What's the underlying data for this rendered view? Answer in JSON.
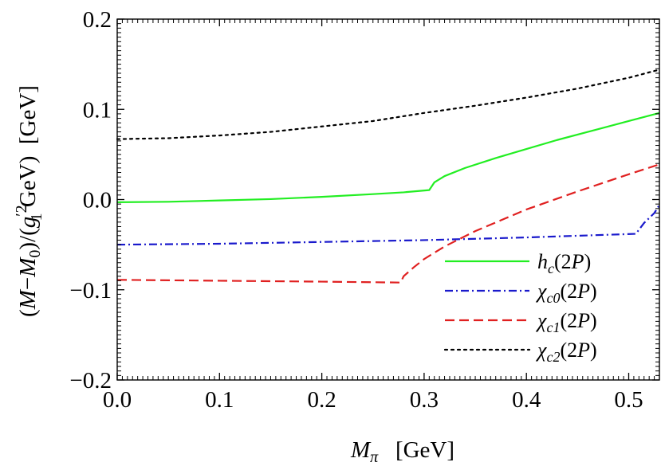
{
  "chart_data": {
    "type": "line",
    "title": "",
    "xlabel_main": "M",
    "xlabel_sub": "π",
    "xlabel_unit": "[GeV]",
    "ylabel_parts": {
      "lead": "(",
      "m": "M",
      "minus": "−",
      "m0": "M",
      "sub0": "0",
      "mid": ")/(",
      "g": "g",
      "gsup": "′2",
      "gsub": "1",
      "unitgev": " GeV)",
      "unit": "[GeV]"
    },
    "xlim": [
      0.0,
      0.53
    ],
    "ylim": [
      -0.2,
      0.2
    ],
    "x_ticks": [
      0.0,
      0.1,
      0.2,
      0.3,
      0.4,
      0.5
    ],
    "x_tick_labels": [
      "0.0",
      "0.1",
      "0.2",
      "0.3",
      "0.4",
      "0.5"
    ],
    "y_ticks": [
      -0.2,
      -0.1,
      0.0,
      0.1,
      0.2
    ],
    "y_tick_labels": [
      "−0.2",
      "−0.1",
      "0.0",
      "0.1",
      "0.2"
    ],
    "grid": false,
    "legend_position": "bottom-right",
    "series": [
      {
        "name": "h_c(2P)",
        "label_main": "h",
        "label_sub": "c",
        "label_tail": "(2P)",
        "color": "#22ee22",
        "dash": "solid",
        "x": [
          0.0,
          0.05,
          0.1,
          0.15,
          0.2,
          0.25,
          0.28,
          0.305,
          0.31,
          0.32,
          0.34,
          0.37,
          0.4,
          0.43,
          0.46,
          0.5,
          0.53
        ],
        "y": [
          -0.003,
          -0.0025,
          -0.001,
          0.0005,
          0.003,
          0.006,
          0.008,
          0.0105,
          0.019,
          0.026,
          0.035,
          0.046,
          0.056,
          0.066,
          0.075,
          0.087,
          0.096
        ]
      },
      {
        "name": "χ_c0(2P)",
        "label_main": "χ",
        "label_sub": "c0",
        "label_tail": "(2P)",
        "color": "#1a1acc",
        "dash": "dashdot",
        "x": [
          0.0,
          0.1,
          0.2,
          0.3,
          0.4,
          0.507,
          0.515,
          0.525,
          0.53
        ],
        "y": [
          -0.05,
          -0.049,
          -0.047,
          -0.045,
          -0.042,
          -0.038,
          -0.026,
          -0.015,
          -0.006
        ]
      },
      {
        "name": "χ_c1(2P)",
        "label_main": "χ",
        "label_sub": "c1",
        "label_tail": "(2P)",
        "color": "#e02020",
        "dash": "dashed",
        "x": [
          0.0,
          0.1,
          0.2,
          0.277,
          0.28,
          0.29,
          0.3,
          0.32,
          0.35,
          0.4,
          0.45,
          0.5,
          0.53
        ],
        "y": [
          -0.089,
          -0.09,
          -0.091,
          -0.092,
          -0.085,
          -0.075,
          -0.066,
          -0.052,
          -0.035,
          -0.011,
          0.009,
          0.028,
          0.039
        ]
      },
      {
        "name": "χ_c2(2P)",
        "label_main": "χ",
        "label_sub": "c2",
        "label_tail": "(2P)",
        "color": "#000000",
        "dash": "dotted",
        "x": [
          0.0,
          0.05,
          0.1,
          0.15,
          0.2,
          0.25,
          0.3,
          0.35,
          0.4,
          0.45,
          0.5,
          0.53
        ],
        "y": [
          0.067,
          0.068,
          0.071,
          0.075,
          0.081,
          0.087,
          0.096,
          0.104,
          0.113,
          0.123,
          0.135,
          0.144
        ]
      }
    ]
  }
}
